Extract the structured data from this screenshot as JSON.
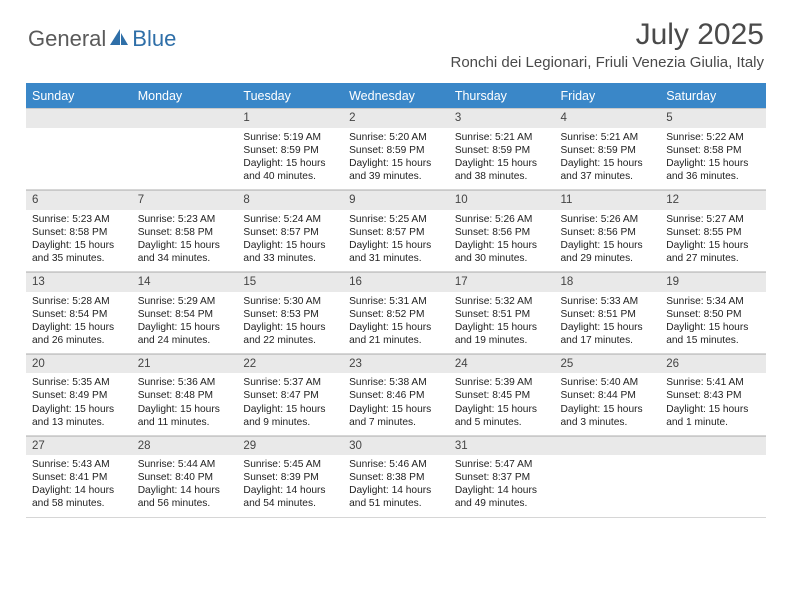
{
  "logo": {
    "general": "General",
    "blue": "Blue"
  },
  "title": "July 2025",
  "location": "Ronchi dei Legionari, Friuli Venezia Giulia, Italy",
  "colors": {
    "header_bg": "#3a87c8",
    "header_text": "#ffffff",
    "daynum_bg": "#e9e9e9",
    "border": "#d6d6d6",
    "logo_gray": "#5a5a5a",
    "logo_blue": "#2f6fa8",
    "title_color": "#4a4a4a"
  },
  "weekdays": [
    "Sunday",
    "Monday",
    "Tuesday",
    "Wednesday",
    "Thursday",
    "Friday",
    "Saturday"
  ],
  "weeks": [
    [
      {
        "blank": true
      },
      {
        "blank": true
      },
      {
        "day": "1",
        "sunrise": "Sunrise: 5:19 AM",
        "sunset": "Sunset: 8:59 PM",
        "daylight": "Daylight: 15 hours and 40 minutes."
      },
      {
        "day": "2",
        "sunrise": "Sunrise: 5:20 AM",
        "sunset": "Sunset: 8:59 PM",
        "daylight": "Daylight: 15 hours and 39 minutes."
      },
      {
        "day": "3",
        "sunrise": "Sunrise: 5:21 AM",
        "sunset": "Sunset: 8:59 PM",
        "daylight": "Daylight: 15 hours and 38 minutes."
      },
      {
        "day": "4",
        "sunrise": "Sunrise: 5:21 AM",
        "sunset": "Sunset: 8:59 PM",
        "daylight": "Daylight: 15 hours and 37 minutes."
      },
      {
        "day": "5",
        "sunrise": "Sunrise: 5:22 AM",
        "sunset": "Sunset: 8:58 PM",
        "daylight": "Daylight: 15 hours and 36 minutes."
      }
    ],
    [
      {
        "day": "6",
        "sunrise": "Sunrise: 5:23 AM",
        "sunset": "Sunset: 8:58 PM",
        "daylight": "Daylight: 15 hours and 35 minutes."
      },
      {
        "day": "7",
        "sunrise": "Sunrise: 5:23 AM",
        "sunset": "Sunset: 8:58 PM",
        "daylight": "Daylight: 15 hours and 34 minutes."
      },
      {
        "day": "8",
        "sunrise": "Sunrise: 5:24 AM",
        "sunset": "Sunset: 8:57 PM",
        "daylight": "Daylight: 15 hours and 33 minutes."
      },
      {
        "day": "9",
        "sunrise": "Sunrise: 5:25 AM",
        "sunset": "Sunset: 8:57 PM",
        "daylight": "Daylight: 15 hours and 31 minutes."
      },
      {
        "day": "10",
        "sunrise": "Sunrise: 5:26 AM",
        "sunset": "Sunset: 8:56 PM",
        "daylight": "Daylight: 15 hours and 30 minutes."
      },
      {
        "day": "11",
        "sunrise": "Sunrise: 5:26 AM",
        "sunset": "Sunset: 8:56 PM",
        "daylight": "Daylight: 15 hours and 29 minutes."
      },
      {
        "day": "12",
        "sunrise": "Sunrise: 5:27 AM",
        "sunset": "Sunset: 8:55 PM",
        "daylight": "Daylight: 15 hours and 27 minutes."
      }
    ],
    [
      {
        "day": "13",
        "sunrise": "Sunrise: 5:28 AM",
        "sunset": "Sunset: 8:54 PM",
        "daylight": "Daylight: 15 hours and 26 minutes."
      },
      {
        "day": "14",
        "sunrise": "Sunrise: 5:29 AM",
        "sunset": "Sunset: 8:54 PM",
        "daylight": "Daylight: 15 hours and 24 minutes."
      },
      {
        "day": "15",
        "sunrise": "Sunrise: 5:30 AM",
        "sunset": "Sunset: 8:53 PM",
        "daylight": "Daylight: 15 hours and 22 minutes."
      },
      {
        "day": "16",
        "sunrise": "Sunrise: 5:31 AM",
        "sunset": "Sunset: 8:52 PM",
        "daylight": "Daylight: 15 hours and 21 minutes."
      },
      {
        "day": "17",
        "sunrise": "Sunrise: 5:32 AM",
        "sunset": "Sunset: 8:51 PM",
        "daylight": "Daylight: 15 hours and 19 minutes."
      },
      {
        "day": "18",
        "sunrise": "Sunrise: 5:33 AM",
        "sunset": "Sunset: 8:51 PM",
        "daylight": "Daylight: 15 hours and 17 minutes."
      },
      {
        "day": "19",
        "sunrise": "Sunrise: 5:34 AM",
        "sunset": "Sunset: 8:50 PM",
        "daylight": "Daylight: 15 hours and 15 minutes."
      }
    ],
    [
      {
        "day": "20",
        "sunrise": "Sunrise: 5:35 AM",
        "sunset": "Sunset: 8:49 PM",
        "daylight": "Daylight: 15 hours and 13 minutes."
      },
      {
        "day": "21",
        "sunrise": "Sunrise: 5:36 AM",
        "sunset": "Sunset: 8:48 PM",
        "daylight": "Daylight: 15 hours and 11 minutes."
      },
      {
        "day": "22",
        "sunrise": "Sunrise: 5:37 AM",
        "sunset": "Sunset: 8:47 PM",
        "daylight": "Daylight: 15 hours and 9 minutes."
      },
      {
        "day": "23",
        "sunrise": "Sunrise: 5:38 AM",
        "sunset": "Sunset: 8:46 PM",
        "daylight": "Daylight: 15 hours and 7 minutes."
      },
      {
        "day": "24",
        "sunrise": "Sunrise: 5:39 AM",
        "sunset": "Sunset: 8:45 PM",
        "daylight": "Daylight: 15 hours and 5 minutes."
      },
      {
        "day": "25",
        "sunrise": "Sunrise: 5:40 AM",
        "sunset": "Sunset: 8:44 PM",
        "daylight": "Daylight: 15 hours and 3 minutes."
      },
      {
        "day": "26",
        "sunrise": "Sunrise: 5:41 AM",
        "sunset": "Sunset: 8:43 PM",
        "daylight": "Daylight: 15 hours and 1 minute."
      }
    ],
    [
      {
        "day": "27",
        "sunrise": "Sunrise: 5:43 AM",
        "sunset": "Sunset: 8:41 PM",
        "daylight": "Daylight: 14 hours and 58 minutes."
      },
      {
        "day": "28",
        "sunrise": "Sunrise: 5:44 AM",
        "sunset": "Sunset: 8:40 PM",
        "daylight": "Daylight: 14 hours and 56 minutes."
      },
      {
        "day": "29",
        "sunrise": "Sunrise: 5:45 AM",
        "sunset": "Sunset: 8:39 PM",
        "daylight": "Daylight: 14 hours and 54 minutes."
      },
      {
        "day": "30",
        "sunrise": "Sunrise: 5:46 AM",
        "sunset": "Sunset: 8:38 PM",
        "daylight": "Daylight: 14 hours and 51 minutes."
      },
      {
        "day": "31",
        "sunrise": "Sunrise: 5:47 AM",
        "sunset": "Sunset: 8:37 PM",
        "daylight": "Daylight: 14 hours and 49 minutes."
      },
      {
        "blank": true
      },
      {
        "blank": true
      }
    ]
  ]
}
